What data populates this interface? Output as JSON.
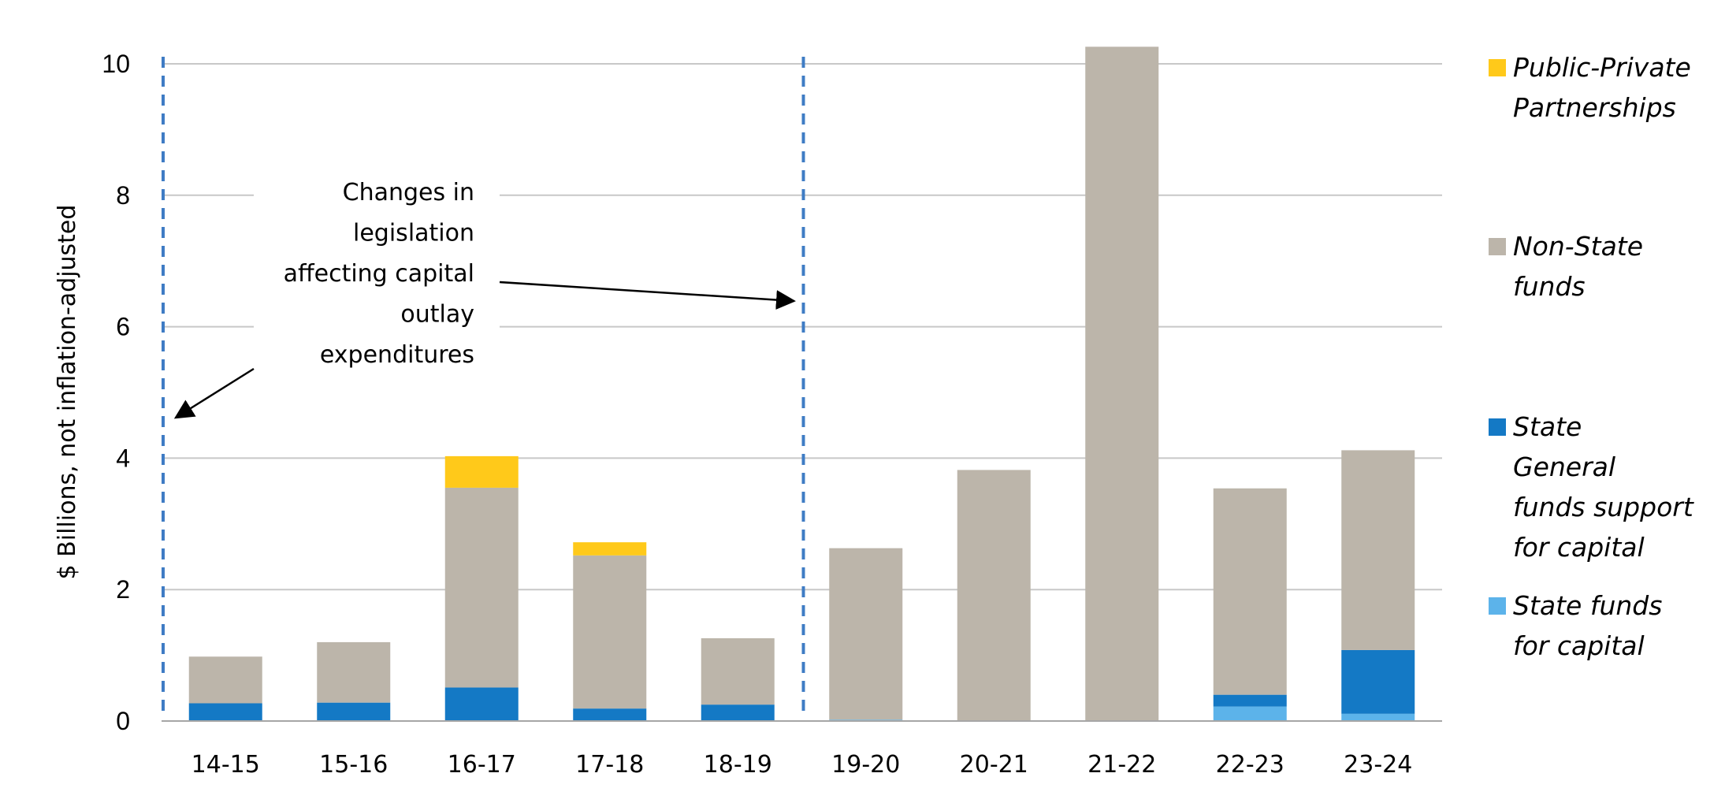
{
  "chart_data": {
    "type": "bar",
    "stacked": true,
    "title": "",
    "xlabel": "",
    "ylabel": "$ Billions, not inflation-adjusted",
    "ylim": [
      0,
      10.2
    ],
    "yticks": [
      0,
      2,
      4,
      6,
      8,
      10
    ],
    "grid": true,
    "legend_position": "right",
    "categories": [
      "14-15",
      "15-16",
      "16-17",
      "17-18",
      "18-19",
      "19-20",
      "20-21",
      "21-22",
      "22-23",
      "23-24"
    ],
    "series": [
      {
        "name": "State funds for capital",
        "color": "#5cb3ea",
        "values": [
          0,
          0,
          0,
          0,
          0,
          0.02,
          0,
          0,
          0.22,
          0.11
        ]
      },
      {
        "name": "State General funds support for capital",
        "color": "#1479c5",
        "values": [
          0.27,
          0.28,
          0.51,
          0.19,
          0.25,
          0,
          0,
          0,
          0.18,
          0.97
        ]
      },
      {
        "name": "Non-State funds",
        "color": "#bcb5aa",
        "values": [
          0.71,
          0.92,
          3.04,
          2.33,
          1.01,
          2.61,
          3.82,
          10.26,
          3.14,
          3.04
        ]
      },
      {
        "name": "Public-Private Partnerships",
        "color": "#ffc91a",
        "values": [
          0,
          0,
          0.48,
          0.2,
          0,
          0,
          0,
          0,
          0,
          0
        ]
      }
    ],
    "legend_lines": [
      [
        "Public-Private",
        "Partnerships"
      ],
      [
        "Non-State",
        "funds"
      ],
      [
        "State",
        "General",
        "funds support",
        "for capital"
      ],
      [
        "State funds",
        "for capital"
      ]
    ],
    "annotation": {
      "lines": [
        "Changes in",
        "legislation",
        "affecting capital",
        "outlay",
        "expenditures"
      ],
      "boundaries": [
        "14-15",
        "19-20"
      ]
    }
  }
}
